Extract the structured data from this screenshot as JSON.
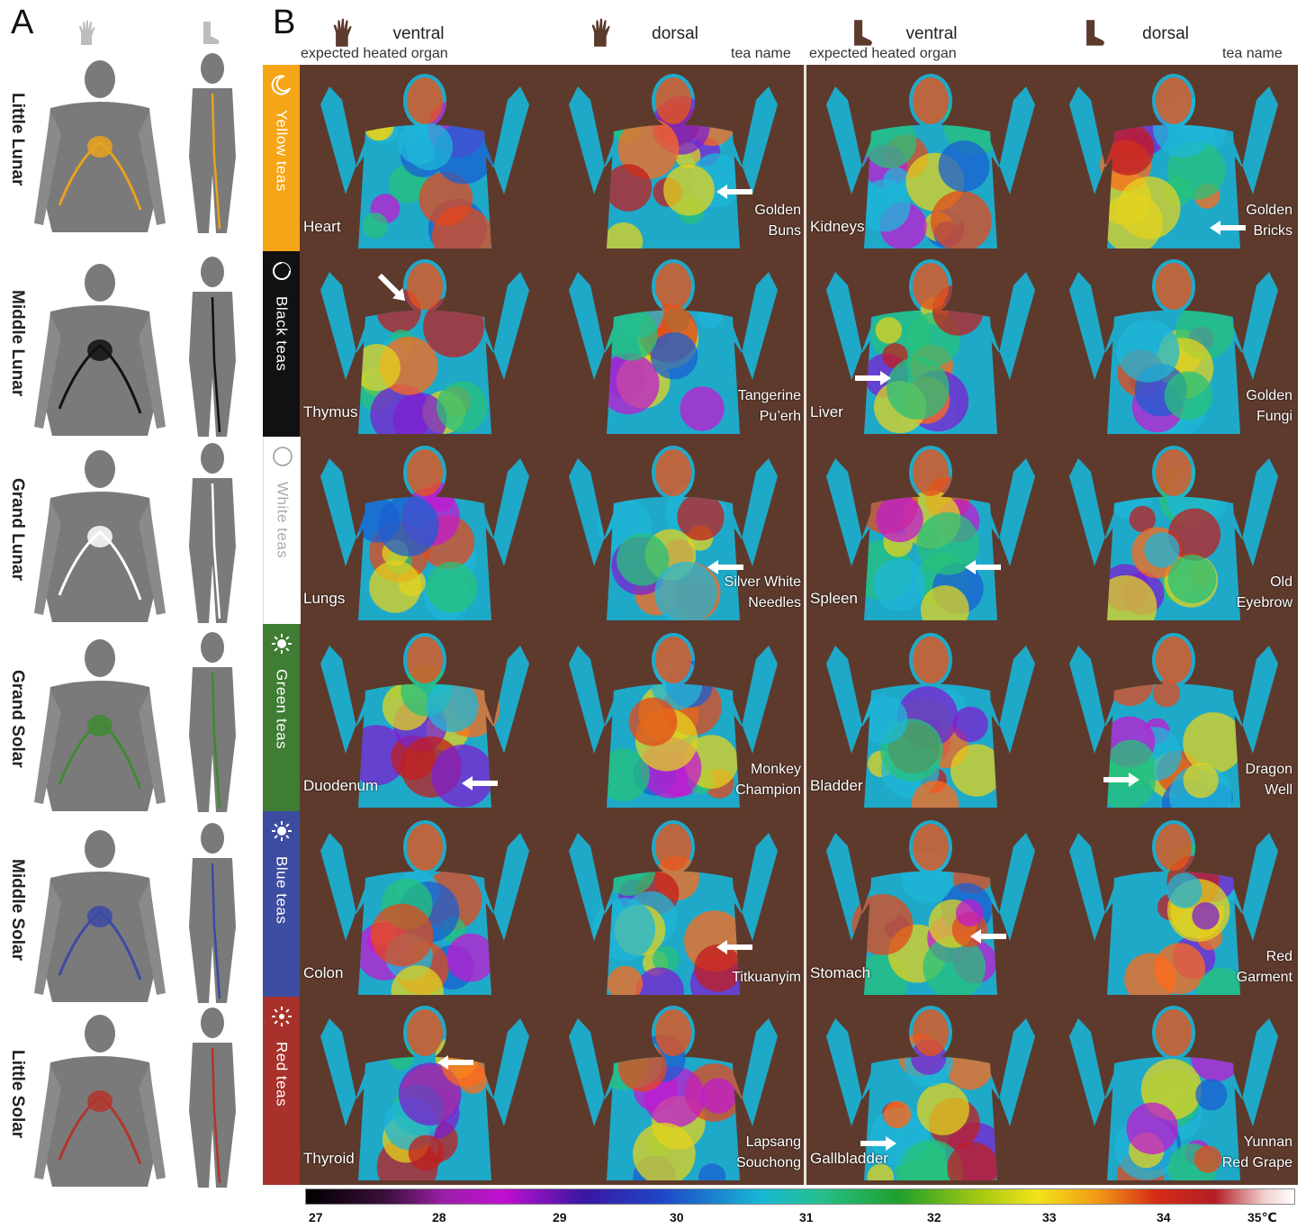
{
  "panel_a": {
    "letter": "A",
    "rows": [
      {
        "label": "Little Lunar",
        "color": "#e8a21d"
      },
      {
        "label": "Middle Lunar",
        "color": "#111111"
      },
      {
        "label": "Grand Lunar",
        "color": "#ffffff"
      },
      {
        "label": "Grand Solar",
        "color": "#3f8a32"
      },
      {
        "label": "Middle Solar",
        "color": "#3b4aa5"
      },
      {
        "label": "Little Solar",
        "color": "#b2352c"
      }
    ]
  },
  "panel_b": {
    "letter": "B",
    "headers": {
      "hand_ventral": "ventral",
      "hand_dorsal": "dorsal",
      "foot_ventral": "ventral",
      "foot_dorsal": "dorsal",
      "left_organ": "expected heated organ",
      "left_tea": "tea name",
      "right_organ": "expected heated organ",
      "right_tea": "tea name"
    },
    "teas": [
      {
        "label": "Yellow teas",
        "color": "#f5a515",
        "icon": "crescent-icon"
      },
      {
        "label": "Black teas",
        "color": "#111111",
        "icon": "gibbous-icon"
      },
      {
        "label": "White teas",
        "color": "#ffffff",
        "icon": "circle-icon"
      },
      {
        "label": "Green teas",
        "color": "#3e7d33",
        "icon": "sun-icon"
      },
      {
        "label": "Blue teas",
        "color": "#3c4ca0",
        "icon": "sun-icon"
      },
      {
        "label": "Red teas",
        "color": "#a8322b",
        "icon": "sun-dot-icon"
      }
    ],
    "rows": [
      {
        "left_organ": "Heart",
        "left_tea": [
          "Golden",
          "Buns"
        ],
        "right_organ": "Kidneys",
        "right_tea": [
          "Golden",
          "Bricks"
        ]
      },
      {
        "left_organ": "Thymus",
        "left_tea": [
          "Tangerine",
          "Pu’erh"
        ],
        "right_organ": "Liver",
        "right_tea": [
          "Golden",
          "Fungi"
        ]
      },
      {
        "left_organ": "Lungs",
        "left_tea": [
          "Silver White",
          "Needles"
        ],
        "right_organ": "Spleen",
        "right_tea": [
          "Old",
          "Eyebrow"
        ]
      },
      {
        "left_organ": "Duodenum",
        "left_tea": [
          "Monkey",
          "Champion"
        ],
        "right_organ": "Bladder",
        "right_tea": [
          "Dragon",
          "Well"
        ]
      },
      {
        "left_organ": "Colon",
        "left_tea": [
          "Titkuanyim"
        ],
        "right_organ": "Stomach",
        "right_tea": [
          "Red",
          "Garment"
        ]
      },
      {
        "left_organ": "Thyroid",
        "left_tea": [
          "Lapsang",
          "Souchong"
        ],
        "right_organ": "Gallbladder",
        "right_tea": [
          "Yunnan",
          "Red Grape"
        ]
      }
    ],
    "colorbar": {
      "ticks": [
        "27",
        "28",
        "29",
        "30",
        "31",
        "32",
        "33",
        "34",
        "35℃"
      ]
    }
  }
}
